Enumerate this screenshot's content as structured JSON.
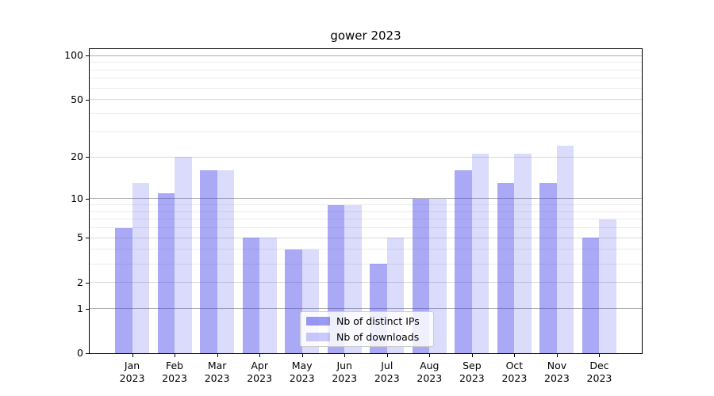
{
  "chart_data": {
    "type": "bar",
    "title": "gower 2023",
    "categories": [
      "Jan",
      "Feb",
      "Mar",
      "Apr",
      "May",
      "Jun",
      "Jul",
      "Aug",
      "Sep",
      "Oct",
      "Nov",
      "Dec"
    ],
    "x_tick_second_line": "2023",
    "series": [
      {
        "name": "Nb of distinct IPs",
        "color": "#4040e8",
        "alpha": 0.45,
        "values": [
          6,
          11,
          16,
          5,
          4,
          9,
          3,
          10,
          16,
          13,
          13,
          5
        ]
      },
      {
        "name": "Nb of downloads",
        "color": "#4040e8",
        "alpha": 0.19,
        "values": [
          13,
          20,
          16,
          5,
          4,
          9,
          5,
          10,
          21,
          21,
          24,
          7
        ]
      }
    ],
    "y_scale": "log10(1+x)",
    "ylim": [
      0,
      100
    ],
    "y_ticks": [
      100,
      50,
      20,
      10,
      5,
      2,
      1,
      0
    ],
    "y_gridlines": {
      "major": [
        1,
        10,
        100
      ],
      "mid": [
        2,
        5,
        20,
        50
      ],
      "minor": [
        3,
        4,
        6,
        7,
        8,
        9,
        30,
        40,
        60,
        70,
        80,
        90
      ]
    },
    "grid_colors": {
      "major": "#b0b0b0",
      "mid": "#dadada",
      "minor": "#ececec"
    },
    "legend": {
      "position": "lower center, inside plot"
    }
  }
}
